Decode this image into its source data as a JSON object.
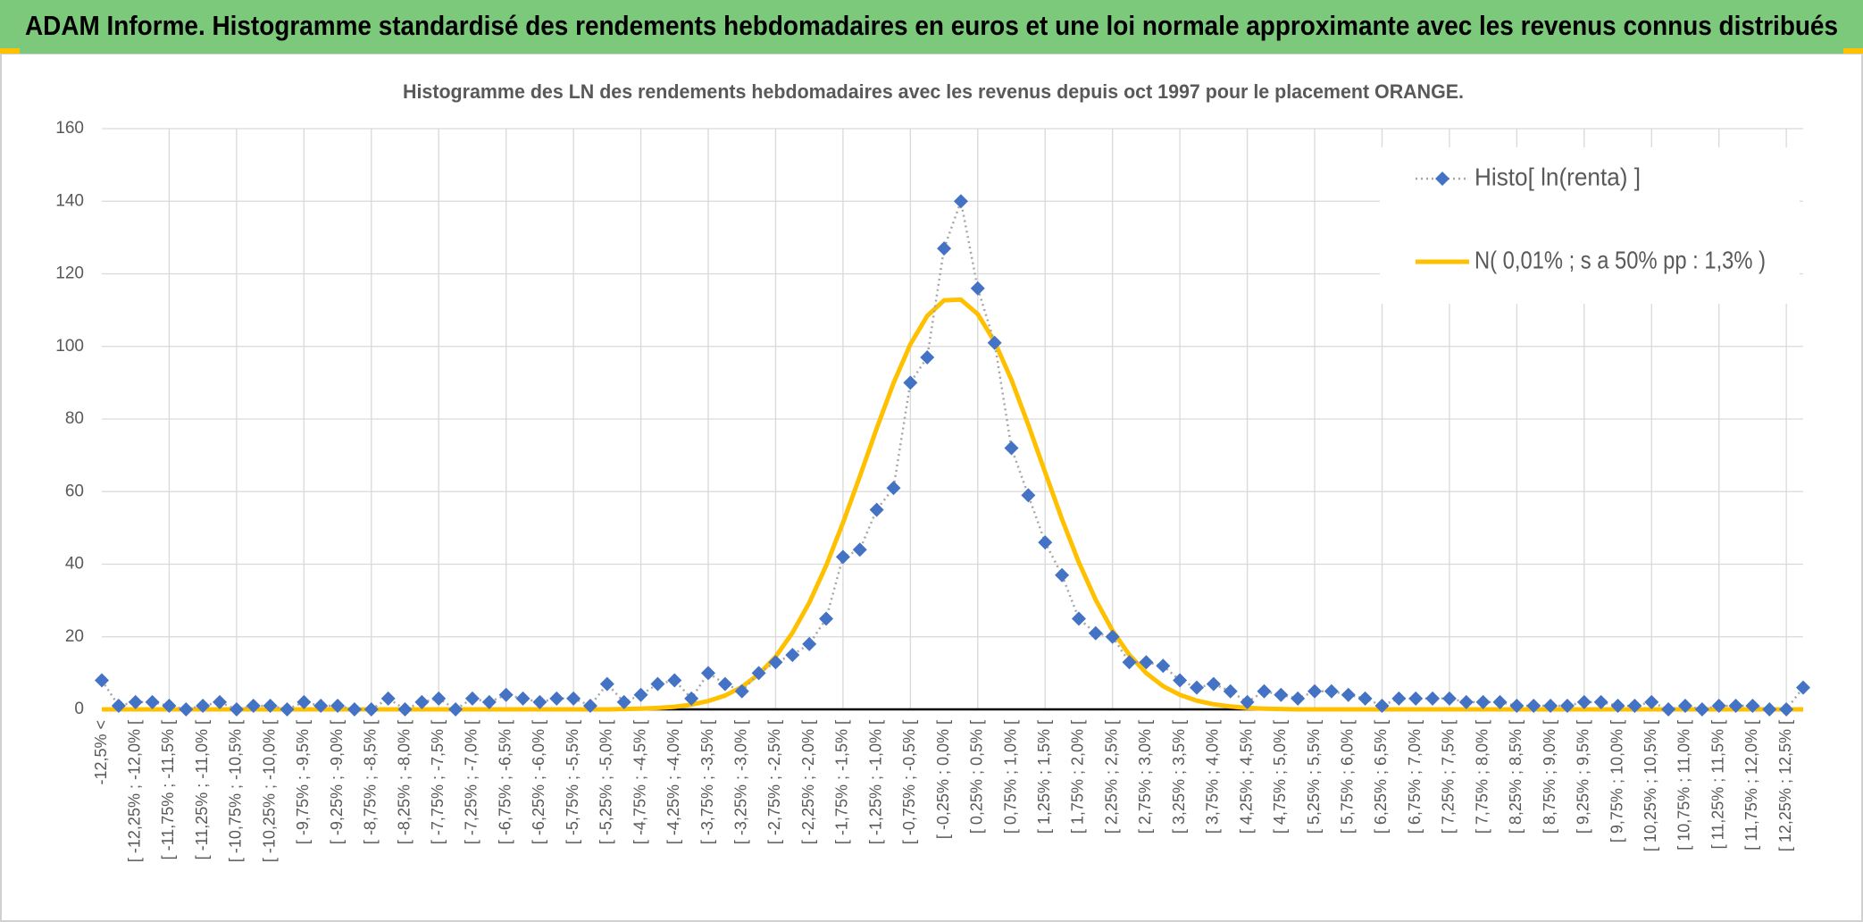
{
  "header": {
    "title": "ADAM Informe. Histogramme standardisé des rendements hebdomadaires en euros et une loi normale approximante avec les revenus connus distribués"
  },
  "chart_data": {
    "type": "line",
    "title": "Histogramme des LN des rendements hebdomadaires avec les revenus depuis oct 1997 pour le placement ORANGE.",
    "categories": [
      "-12,5% <",
      null,
      "[ -12,25% ; -12,0% [",
      null,
      "[ -11,75% ; -11,5% [",
      null,
      "[ -11,25% ; -11,0% [",
      null,
      "[ -10,75% ; -10,5% [",
      null,
      "[ -10,25% ; -10,0% [",
      null,
      "[ -9,75% ; -9,5% [",
      null,
      "[ -9,25% ; -9,0% [",
      null,
      "[ -8,75% ; -8,5% [",
      null,
      "[ -8,25% ; -8,0% [",
      null,
      "[ -7,75% ; -7,5% [",
      null,
      "[ -7,25% ; -7,0% [",
      null,
      "[ -6,75% ; -6,5% [",
      null,
      "[ -6,25% ; -6,0% [",
      null,
      "[ -5,75% ; -5,5% [",
      null,
      "[ -5,25% ; -5,0% [",
      null,
      "[ -4,75% ; -4,5% [",
      null,
      "[ -4,25% ; -4,0% [",
      null,
      "[ -3,75% ; -3,5% [",
      null,
      "[ -3,25% ; -3,0% [",
      null,
      "[ -2,75% ; -2,5% [",
      null,
      "[ -2,25% ; -2,0% [",
      null,
      "[ -1,75% ; -1,5% [",
      null,
      "[ -1,25% ; -1,0% [",
      null,
      "[ -0,75% ; -0,5% [",
      null,
      "[ -0,25% ; 0,0% [",
      null,
      "[ 0,25% ; 0,5% [",
      null,
      "[ 0,75% ; 1,0% [",
      null,
      "[ 1,25% ; 1,5% [",
      null,
      "[ 1,75% ; 2,0% [",
      null,
      "[ 2,25% ; 2,5% [",
      null,
      "[ 2,75% ; 3,0% [",
      null,
      "[ 3,25% ; 3,5% [",
      null,
      "[ 3,75% ; 4,0% [",
      null,
      "[ 4,25% ; 4,5% [",
      null,
      "[ 4,75% ; 5,0% [",
      null,
      "[ 5,25% ; 5,5% [",
      null,
      "[ 5,75% ; 6,0% [",
      null,
      "[ 6,25% ; 6,5% [",
      null,
      "[ 6,75% ; 7,0% [",
      null,
      "[ 7,25% ; 7,5% [",
      null,
      "[ 7,75% ; 8,0% [",
      null,
      "[ 8,25% ; 8,5% [",
      null,
      "[ 8,75% ; 9,0% [",
      null,
      "[ 9,25% ; 9,5% [",
      null,
      "[ 9,75% ; 10,0% [",
      null,
      "[ 10,25% ; 10,5% [",
      null,
      "[ 10,75% ; 11,0% [",
      null,
      "[ 11,25% ; 11,5% [",
      null,
      "[ 11,75% ; 12,0% [",
      null,
      "[ 12,25% ; 12,5% [",
      null
    ],
    "series": [
      {
        "name": "Histo[ ln(renta) ]",
        "color": "#4472c4",
        "line_color": "#a6a6a6",
        "values": [
          8,
          1,
          2,
          2,
          1,
          0,
          1,
          2,
          0,
          1,
          1,
          0,
          2,
          1,
          1,
          0,
          0,
          3,
          0,
          2,
          3,
          0,
          3,
          2,
          4,
          3,
          2,
          3,
          3,
          1,
          7,
          2,
          4,
          7,
          8,
          3,
          10,
          7,
          5,
          10,
          13,
          15,
          18,
          25,
          42,
          44,
          55,
          61,
          90,
          97,
          127,
          140,
          116,
          101,
          72,
          59,
          46,
          37,
          25,
          21,
          20,
          13,
          13,
          12,
          8,
          6,
          7,
          5,
          2,
          5,
          4,
          3,
          5,
          5,
          4,
          3,
          1,
          3,
          3,
          3,
          3,
          2,
          2,
          2,
          1,
          1,
          1,
          1,
          2,
          2,
          1,
          1,
          2,
          0,
          1,
          0,
          1,
          1,
          1,
          0,
          0,
          6
        ]
      },
      {
        "name": "N( 0,01% ; s a 50% pp : 1,3% )",
        "color": "#ffc000",
        "values": [
          0,
          0,
          0,
          0,
          0,
          0,
          0,
          0,
          0,
          0,
          0,
          0,
          0,
          0,
          0,
          0,
          0,
          0,
          0,
          0,
          0,
          0,
          0,
          0,
          0,
          0,
          0,
          0,
          0,
          0,
          0,
          0.1,
          0.2,
          0.4,
          0.7,
          1.3,
          2.3,
          3.8,
          6.2,
          9.7,
          14.5,
          21.1,
          29.4,
          39.6,
          51.4,
          64.2,
          77.4,
          89.9,
          100.6,
          108.4,
          112.7,
          112.9,
          108.9,
          101.3,
          90.8,
          78.4,
          65.3,
          52.4,
          40.5,
          30.2,
          21.7,
          15.0,
          10.0,
          6.4,
          4.0,
          2.4,
          1.4,
          0.8,
          0.4,
          0.2,
          0.1,
          0,
          0,
          0,
          0,
          0,
          0,
          0,
          0,
          0,
          0,
          0,
          0,
          0,
          0,
          0,
          0,
          0,
          0,
          0,
          0,
          0,
          0,
          0,
          0,
          0,
          0,
          0,
          0,
          0,
          0,
          0
        ]
      }
    ],
    "ylim": [
      0,
      160
    ],
    "yticks": [
      0,
      20,
      40,
      60,
      80,
      100,
      120,
      140,
      160
    ],
    "grid": true,
    "legend": "top-right"
  }
}
